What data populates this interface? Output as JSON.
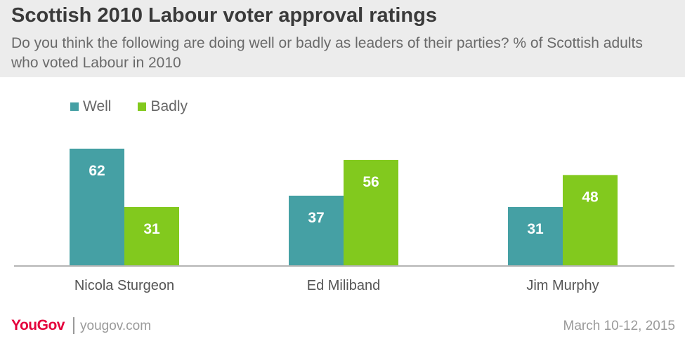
{
  "header": {
    "title": "Scottish 2010 Labour voter approval ratings",
    "subtitle": "Do you think the following are doing well or badly as leaders of their parties? % of Scottish adults who voted Labour in 2010"
  },
  "legend": [
    {
      "label": "Well",
      "color": "#45a0a4"
    },
    {
      "label": "Badly",
      "color": "#82c91e"
    }
  ],
  "chart_data": {
    "type": "bar",
    "categories": [
      "Nicola Sturgeon",
      "Ed Miliband",
      "Jim Murphy"
    ],
    "series": [
      {
        "name": "Well",
        "values": [
          62,
          37,
          31
        ],
        "color": "#45a0a4"
      },
      {
        "name": "Badly",
        "values": [
          31,
          56,
          48
        ],
        "color": "#82c91e"
      }
    ],
    "ylim": [
      0,
      100
    ],
    "grid": false,
    "legend_position": "top-left",
    "data_labels": true
  },
  "footer": {
    "logo": "YouGov",
    "url": "yougov.com",
    "date": "March 10-12, 2015"
  }
}
